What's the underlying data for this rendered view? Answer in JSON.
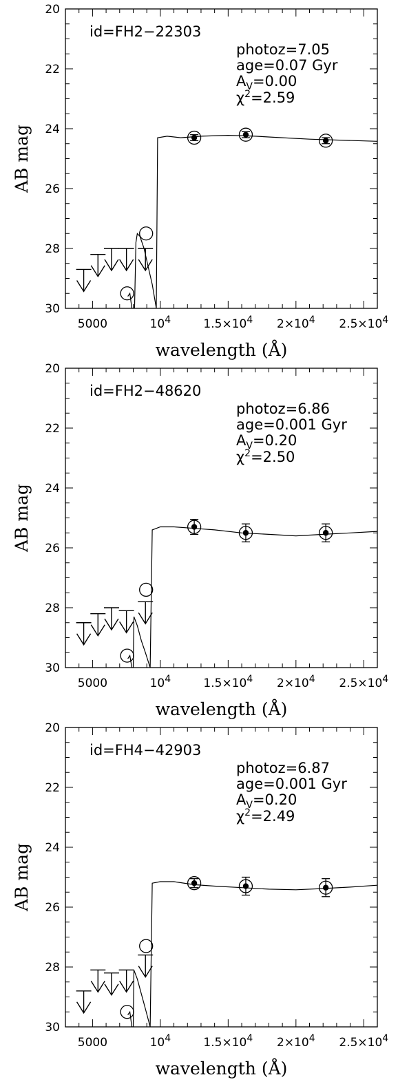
{
  "chart_data": [
    {
      "type": "line",
      "object_id": "id=FH2−22303",
      "annotations": {
        "photoz": "photoz=7.05",
        "age": "age=0.07 Gyr",
        "av": "0.00",
        "chi2": "2.59"
      },
      "xlabel": "wavelength (Å)",
      "ylabel": "AB mag",
      "xlim": [
        3000,
        26000
      ],
      "ylim": [
        30,
        20
      ],
      "xticks": [
        {
          "v": 5000,
          "t": "5000",
          "kind": "plain"
        },
        {
          "v": 10000,
          "t": "10",
          "s": "4",
          "kind": "pow"
        },
        {
          "v": 15000,
          "t": "1.5×10",
          "s": "4",
          "kind": "pow"
        },
        {
          "v": 20000,
          "t": "2×10",
          "s": "4",
          "kind": "pow"
        },
        {
          "v": 25000,
          "t": "2.5×10",
          "s": "4",
          "kind": "pow"
        }
      ],
      "yticks": [
        "20",
        "22",
        "24",
        "26",
        "28",
        "30"
      ],
      "detections": [
        {
          "x": 12500,
          "y": 24.3,
          "err": 0.1
        },
        {
          "x": 16300,
          "y": 24.2,
          "err": 0.1
        },
        {
          "x": 22200,
          "y": 24.4,
          "err": 0.1
        }
      ],
      "upper_limits": [
        {
          "x": 4350,
          "y": 28.7
        },
        {
          "x": 5400,
          "y": 28.2
        },
        {
          "x": 6400,
          "y": 28.0
        },
        {
          "x": 7500,
          "y": 28.0
        },
        {
          "x": 8900,
          "y": 28.0
        }
      ],
      "model_mags": [
        {
          "x": 7550,
          "y": 29.5
        },
        {
          "x": 8950,
          "y": 27.5
        }
      ],
      "sed": [
        [
          7600,
          29.6
        ],
        [
          7750,
          29.5
        ],
        [
          7900,
          30
        ],
        [
          8100,
          30
        ],
        [
          8200,
          27.8
        ],
        [
          8300,
          27.5
        ],
        [
          8500,
          27.6
        ],
        [
          8800,
          28.0
        ],
        [
          9100,
          28.6
        ],
        [
          9400,
          29.2
        ],
        [
          9700,
          30
        ],
        [
          9800,
          24.3
        ],
        [
          10500,
          24.25
        ],
        [
          11500,
          24.3
        ],
        [
          13000,
          24.25
        ],
        [
          15000,
          24.22
        ],
        [
          17000,
          24.25
        ],
        [
          19000,
          24.3
        ],
        [
          21000,
          24.35
        ],
        [
          23000,
          24.38
        ],
        [
          26000,
          24.42
        ]
      ]
    },
    {
      "type": "line",
      "object_id": "id=FH2−48620",
      "annotations": {
        "photoz": "photoz=6.86",
        "age": "age=0.001 Gyr",
        "av": "0.20",
        "chi2": "2.50"
      },
      "xlabel": "wavelength (Å)",
      "ylabel": "AB mag",
      "xlim": [
        3000,
        26000
      ],
      "ylim": [
        30,
        20
      ],
      "xticks": [
        {
          "v": 5000,
          "t": "5000",
          "kind": "plain"
        },
        {
          "v": 10000,
          "t": "10",
          "s": "4",
          "kind": "pow"
        },
        {
          "v": 15000,
          "t": "1.5×10",
          "s": "4",
          "kind": "pow"
        },
        {
          "v": 20000,
          "t": "2×10",
          "s": "4",
          "kind": "pow"
        },
        {
          "v": 25000,
          "t": "2.5×10",
          "s": "4",
          "kind": "pow"
        }
      ],
      "yticks": [
        "20",
        "22",
        "24",
        "26",
        "28",
        "30"
      ],
      "detections": [
        {
          "x": 12500,
          "y": 25.3,
          "err": 0.25
        },
        {
          "x": 16300,
          "y": 25.5,
          "err": 0.3
        },
        {
          "x": 22200,
          "y": 25.5,
          "err": 0.3
        }
      ],
      "upper_limits": [
        {
          "x": 4350,
          "y": 28.5
        },
        {
          "x": 5400,
          "y": 28.2
        },
        {
          "x": 6400,
          "y": 28.0
        },
        {
          "x": 7500,
          "y": 28.1
        },
        {
          "x": 8900,
          "y": 27.8
        }
      ],
      "model_mags": [
        {
          "x": 7550,
          "y": 29.6
        },
        {
          "x": 8950,
          "y": 27.4
        }
      ],
      "sed": [
        [
          7600,
          29.7
        ],
        [
          7750,
          29.6
        ],
        [
          7900,
          30
        ],
        [
          8000,
          30
        ],
        [
          8050,
          28.3
        ],
        [
          8300,
          28.6
        ],
        [
          8600,
          29.1
        ],
        [
          8900,
          29.5
        ],
        [
          9250,
          30
        ],
        [
          9400,
          25.4
        ],
        [
          10000,
          25.3
        ],
        [
          11000,
          25.3
        ],
        [
          12500,
          25.35
        ],
        [
          14000,
          25.4
        ],
        [
          16000,
          25.5
        ],
        [
          18000,
          25.55
        ],
        [
          20000,
          25.6
        ],
        [
          22000,
          25.55
        ],
        [
          24000,
          25.5
        ],
        [
          26000,
          25.45
        ]
      ]
    },
    {
      "type": "line",
      "object_id": "id=FH4−42903",
      "annotations": {
        "photoz": "photoz=6.87",
        "age": "age=0.001 Gyr",
        "av": "0.20",
        "chi2": "2.49"
      },
      "xlabel": "wavelength (Å)",
      "ylabel": "AB mag",
      "xlim": [
        3000,
        26000
      ],
      "ylim": [
        30,
        20
      ],
      "xticks": [
        {
          "v": 5000,
          "t": "5000",
          "kind": "plain"
        },
        {
          "v": 10000,
          "t": "10",
          "s": "4",
          "kind": "pow"
        },
        {
          "v": 15000,
          "t": "1.5×10",
          "s": "4",
          "kind": "pow"
        },
        {
          "v": 20000,
          "t": "2×10",
          "s": "4",
          "kind": "pow"
        },
        {
          "v": 25000,
          "t": "2.5×10",
          "s": "4",
          "kind": "pow"
        }
      ],
      "yticks": [
        "20",
        "22",
        "24",
        "26",
        "28",
        "30"
      ],
      "detections": [
        {
          "x": 12500,
          "y": 25.2,
          "err": 0.15
        },
        {
          "x": 16300,
          "y": 25.3,
          "err": 0.3
        },
        {
          "x": 22200,
          "y": 25.35,
          "err": 0.3
        }
      ],
      "upper_limits": [
        {
          "x": 4350,
          "y": 28.8
        },
        {
          "x": 5400,
          "y": 28.1
        },
        {
          "x": 6400,
          "y": 28.2
        },
        {
          "x": 7500,
          "y": 28.1
        },
        {
          "x": 8900,
          "y": 27.6
        }
      ],
      "model_mags": [
        {
          "x": 7550,
          "y": 29.5
        },
        {
          "x": 8950,
          "y": 27.3
        }
      ],
      "sed": [
        [
          7600,
          29.6
        ],
        [
          7750,
          29.5
        ],
        [
          7900,
          30
        ],
        [
          8000,
          30
        ],
        [
          8050,
          28.1
        ],
        [
          8300,
          28.4
        ],
        [
          8600,
          28.9
        ],
        [
          8900,
          29.4
        ],
        [
          9250,
          30
        ],
        [
          9400,
          25.2
        ],
        [
          10000,
          25.15
        ],
        [
          11000,
          25.15
        ],
        [
          12500,
          25.25
        ],
        [
          14000,
          25.3
        ],
        [
          16000,
          25.35
        ],
        [
          18000,
          25.4
        ],
        [
          20000,
          25.42
        ],
        [
          22000,
          25.38
        ],
        [
          24000,
          25.33
        ],
        [
          26000,
          25.27
        ]
      ]
    }
  ]
}
